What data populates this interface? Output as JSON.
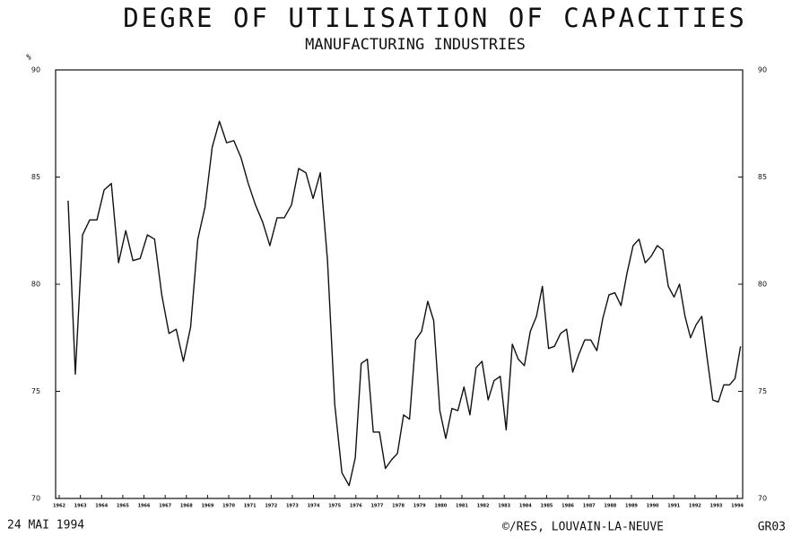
{
  "chart_data": {
    "type": "line",
    "title": "DEGRE OF UTILISATION OF CAPACITIES",
    "subtitle": "MANUFACTURING INDUSTRIES",
    "y_label": "%",
    "footer_left": "24 MAI 1994",
    "footer_center": "©/RES, LOUVAIN-LA-NEUVE",
    "footer_right": "GR03",
    "x": [
      1962.42,
      1962.76,
      1963.1,
      1963.44,
      1963.78,
      1964.12,
      1964.46,
      1964.8,
      1965.14,
      1965.48,
      1965.82,
      1966.16,
      1966.5,
      1966.84,
      1967.18,
      1967.52,
      1967.86,
      1968.2,
      1968.54,
      1968.88,
      1969.22,
      1969.56,
      1969.9,
      1970.24,
      1970.58,
      1970.92,
      1971.26,
      1971.6,
      1971.94,
      1972.28,
      1972.62,
      1972.96,
      1973.3,
      1973.64,
      1973.98,
      1974.32,
      1974.66,
      1975.0,
      1975.34,
      1975.68,
      1975.97,
      1976.25,
      1976.54,
      1976.82,
      1977.11,
      1977.39,
      1977.68,
      1977.96,
      1978.25,
      1978.53,
      1978.82,
      1979.1,
      1979.39,
      1979.67,
      1979.96,
      1980.24,
      1980.53,
      1980.81,
      1981.1,
      1981.38,
      1981.67,
      1981.95,
      1982.24,
      1982.52,
      1982.81,
      1983.09,
      1983.38,
      1983.66,
      1983.95,
      1984.23,
      1984.52,
      1984.8,
      1985.09,
      1985.37,
      1985.66,
      1985.94,
      1986.23,
      1986.51,
      1986.8,
      1987.08,
      1987.37,
      1987.65,
      1987.94,
      1988.22,
      1988.51,
      1988.79,
      1989.08,
      1989.36,
      1989.65,
      1989.93,
      1990.22,
      1990.48,
      1990.74,
      1991.01,
      1991.27,
      1991.53,
      1991.79,
      1992.05,
      1992.32,
      1992.58,
      1992.84,
      1993.1,
      1993.36,
      1993.63,
      1993.89,
      1994.15
    ],
    "series": [
      {
        "color": "#111111",
        "values": [
          83.9,
          75.8,
          82.3,
          83.0,
          83.0,
          84.4,
          84.7,
          81.0,
          82.5,
          81.1,
          81.2,
          82.3,
          82.1,
          79.5,
          77.7,
          77.9,
          76.4,
          78.0,
          82.1,
          83.6,
          86.4,
          87.6,
          86.6,
          86.7,
          85.9,
          84.7,
          83.7,
          82.9,
          81.8,
          83.1,
          83.1,
          83.7,
          85.4,
          85.2,
          84.0,
          85.2,
          81.1,
          74.4,
          71.2,
          70.6,
          71.9,
          76.3,
          76.5,
          73.1,
          73.1,
          71.4,
          71.8,
          72.1,
          73.9,
          73.7,
          77.4,
          77.8,
          79.2,
          78.3,
          74.1,
          72.8,
          74.2,
          74.1,
          75.2,
          73.9,
          76.1,
          76.4,
          74.6,
          75.5,
          75.7,
          73.2,
          77.2,
          76.5,
          76.2,
          77.8,
          78.5,
          79.9,
          77.0,
          77.1,
          77.7,
          77.9,
          75.9,
          76.7,
          77.4,
          77.4,
          76.9,
          78.4,
          79.5,
          79.6,
          79.0,
          80.5,
          81.8,
          82.1,
          81.0,
          81.3,
          81.8,
          81.6,
          79.9,
          79.4,
          80.0,
          78.5,
          77.5,
          78.1,
          78.5,
          76.5,
          74.6,
          74.5,
          75.3,
          75.3,
          75.6,
          77.1
        ]
      }
    ],
    "xlim": [
      1961.83,
      1994.25
    ],
    "xticks": [
      1962,
      1963,
      1964,
      1965,
      1966,
      1967,
      1968,
      1969,
      1970,
      1971,
      1972,
      1973,
      1974,
      1975,
      1976,
      1977,
      1978,
      1979,
      1980,
      1981,
      1982,
      1983,
      1984,
      1985,
      1986,
      1987,
      1988,
      1989,
      1990,
      1991,
      1992,
      1993,
      1994
    ],
    "ylim": [
      70,
      90
    ],
    "yticks": [
      70,
      75,
      80,
      85,
      90
    ]
  }
}
